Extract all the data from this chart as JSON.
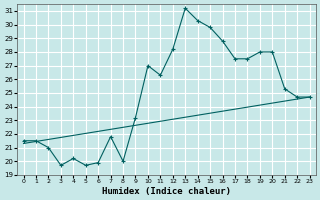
{
  "xlabel": "Humidex (Indice chaleur)",
  "bg_color": "#c8e8e8",
  "grid_color": "#ffffff",
  "line_color": "#006060",
  "xlim": [
    -0.5,
    23.5
  ],
  "ylim": [
    19,
    31.5
  ],
  "xticks": [
    0,
    1,
    2,
    3,
    4,
    5,
    6,
    7,
    8,
    9,
    10,
    11,
    12,
    13,
    14,
    15,
    16,
    17,
    18,
    19,
    20,
    21,
    22,
    23
  ],
  "yticks": [
    19,
    20,
    21,
    22,
    23,
    24,
    25,
    26,
    27,
    28,
    29,
    30,
    31
  ],
  "main_x": [
    0,
    1,
    2,
    3,
    4,
    5,
    6,
    7,
    8,
    9,
    10,
    11,
    12,
    13,
    14,
    15,
    16,
    17,
    18,
    19,
    20,
    21,
    22,
    23
  ],
  "main_y": [
    21.5,
    21.5,
    21.0,
    19.7,
    20.2,
    19.7,
    19.9,
    21.8,
    20.0,
    23.2,
    27.0,
    26.3,
    28.2,
    31.2,
    30.3,
    29.8,
    28.8,
    27.5,
    27.5,
    28.0,
    28.0,
    25.3,
    24.7,
    24.7
  ],
  "trend_x": [
    0,
    23
  ],
  "trend_y": [
    21.3,
    24.7
  ]
}
